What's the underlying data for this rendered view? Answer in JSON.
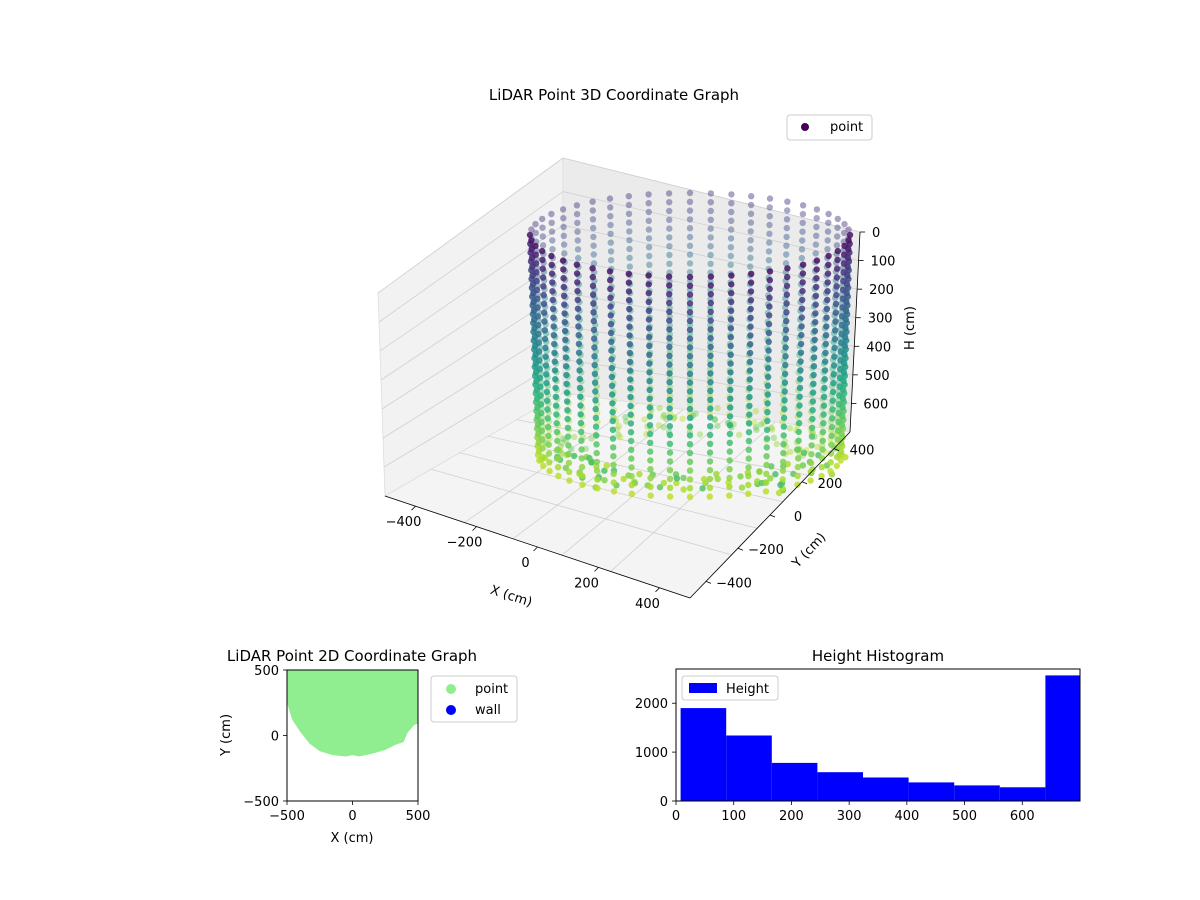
{
  "chart_data": [
    {
      "type": "scatter",
      "subtype": "3d",
      "title": "LiDAR Point 3D Coordinate Graph",
      "xlabel": "X (cm)",
      "ylabel": "Y (cm)",
      "zlabel": "H (cm)",
      "xticks": [
        "−400",
        "−200",
        "0",
        "200",
        "400"
      ],
      "yticks": [
        "−400",
        "−200",
        "0",
        "200",
        "400"
      ],
      "zticks": [
        "0",
        "100",
        "200",
        "300",
        "400",
        "500",
        "600"
      ],
      "xlim": [
        -500,
        500
      ],
      "ylim": [
        -500,
        500
      ],
      "zlim": [
        0,
        700
      ],
      "zaxis_inverted": true,
      "colormap": "viridis",
      "legend": [
        "point"
      ],
      "legend_color": "#440154",
      "legend_position": "upper right",
      "grid": true,
      "description_of_points": {
        "shape": "cylindrical wall",
        "radius_cm": 450,
        "height_range_cm": [
          0,
          700
        ]
      }
    },
    {
      "type": "scatter",
      "title": "LiDAR Point 2D Coordinate Graph",
      "xlabel": "X (cm)",
      "ylabel": "Y (cm)",
      "xticks": [
        "−500",
        "0",
        "500"
      ],
      "yticks": [
        "−500",
        "0",
        "500"
      ],
      "xlim": [
        -500,
        500
      ],
      "ylim": [
        -500,
        500
      ],
      "series": [
        {
          "name": "point",
          "color": "#90ee90",
          "boundary": [
            [
              -500,
              500
            ],
            [
              -500,
              250
            ],
            [
              -460,
              120
            ],
            [
              -400,
              30
            ],
            [
              -330,
              -60
            ],
            [
              -250,
              -120
            ],
            [
              -150,
              -150
            ],
            [
              -50,
              -160
            ],
            [
              0,
              -150
            ],
            [
              50,
              -160
            ],
            [
              150,
              -140
            ],
            [
              250,
              -110
            ],
            [
              330,
              -70
            ],
            [
              390,
              -50
            ],
            [
              420,
              20
            ],
            [
              470,
              80
            ],
            [
              500,
              90
            ],
            [
              500,
              500
            ]
          ]
        },
        {
          "name": "wall",
          "color": "#0000ff",
          "points": []
        }
      ],
      "legend_position": "outside right"
    },
    {
      "type": "bar",
      "subtype": "histogram",
      "title": "Height Histogram",
      "xlabel": "",
      "ylabel": "",
      "series": [
        {
          "name": "Height",
          "color": "#0000ff"
        }
      ],
      "bin_edges": [
        8,
        87,
        166,
        245,
        324,
        403,
        482,
        561,
        640,
        700
      ],
      "values": [
        1900,
        1340,
        780,
        590,
        480,
        380,
        320,
        280,
        2570
      ],
      "xlim": [
        0,
        700
      ],
      "ylim": [
        0,
        2700
      ],
      "xticks": [
        0,
        100,
        200,
        300,
        400,
        500,
        600
      ],
      "yticks": [
        0,
        1000,
        2000
      ],
      "legend_position": "upper left"
    }
  ]
}
